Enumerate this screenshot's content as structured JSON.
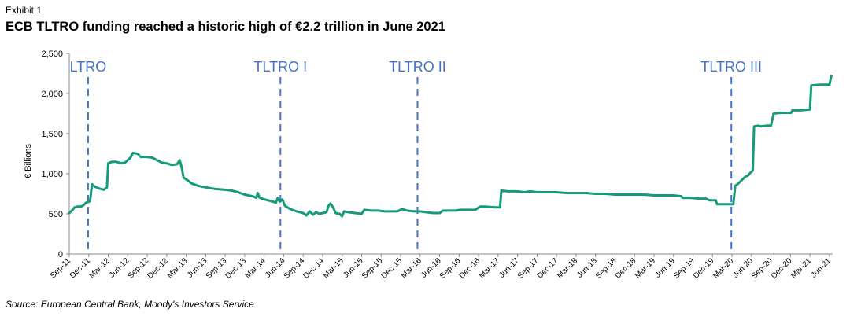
{
  "exhibit_label": "Exhibit 1",
  "title": "ECB TLTRO funding reached a historic high of €2.2 trillion in June 2021",
  "source": "Source: European Central Bank, Moody's Investors Service",
  "colors": {
    "line": "#159A7A",
    "marker": "#4472C4",
    "axis": "#888888",
    "text": "#000000"
  },
  "chart_data": {
    "type": "line",
    "title": "ECB TLTRO funding reached a historic high of €2.2 trillion in June 2021",
    "xlabel": "",
    "ylabel": "€ Billions",
    "ylim": [
      0,
      2500
    ],
    "yticks": [
      0,
      500,
      1000,
      1500,
      2000,
      2500
    ],
    "ytick_labels": [
      "0",
      "500",
      "1,000",
      "1,500",
      "2,000",
      "2,500"
    ],
    "x_range_months": [
      0,
      117.5
    ],
    "x_ticks": [
      {
        "m": 0,
        "label": "Sep-11"
      },
      {
        "m": 3,
        "label": "Dec-11"
      },
      {
        "m": 6,
        "label": "Mar-12"
      },
      {
        "m": 9,
        "label": "Jun-12"
      },
      {
        "m": 12,
        "label": "Sep-12"
      },
      {
        "m": 15,
        "label": "Dec-12"
      },
      {
        "m": 18,
        "label": "Mar-13"
      },
      {
        "m": 21,
        "label": "Jun-13"
      },
      {
        "m": 24,
        "label": "Sep-13"
      },
      {
        "m": 27,
        "label": "Dec-13"
      },
      {
        "m": 30,
        "label": "Mar-14"
      },
      {
        "m": 33,
        "label": "Jun-14"
      },
      {
        "m": 36,
        "label": "Sep-14"
      },
      {
        "m": 39,
        "label": "Dec-14"
      },
      {
        "m": 42,
        "label": "Mar-15"
      },
      {
        "m": 45,
        "label": "Jun-15"
      },
      {
        "m": 48,
        "label": "Sep-15"
      },
      {
        "m": 51,
        "label": "Dec-15"
      },
      {
        "m": 54,
        "label": "Mar-16"
      },
      {
        "m": 57,
        "label": "Jun-16"
      },
      {
        "m": 60,
        "label": "Sep-16"
      },
      {
        "m": 63,
        "label": "Dec-16"
      },
      {
        "m": 66,
        "label": "Mar-17"
      },
      {
        "m": 69,
        "label": "Jun-17"
      },
      {
        "m": 72,
        "label": "Sep-17"
      },
      {
        "m": 75,
        "label": "Dec-17"
      },
      {
        "m": 78,
        "label": "Mar-18"
      },
      {
        "m": 81,
        "label": "Jun-18"
      },
      {
        "m": 84,
        "label": "Sep-18"
      },
      {
        "m": 87,
        "label": "Dec-18"
      },
      {
        "m": 90,
        "label": "Mar-19"
      },
      {
        "m": 93,
        "label": "Jun-19"
      },
      {
        "m": 96,
        "label": "Sep-19"
      },
      {
        "m": 99,
        "label": "Dec-19"
      },
      {
        "m": 102,
        "label": "Mar-20"
      },
      {
        "m": 105,
        "label": "Jun-20"
      },
      {
        "m": 108,
        "label": "Sep-20"
      },
      {
        "m": 111,
        "label": "Dec-20"
      },
      {
        "m": 114,
        "label": "Mar-21"
      },
      {
        "m": 117,
        "label": "Jun-21"
      }
    ],
    "annotations": [
      {
        "label": "LTRO",
        "m": 2.9
      },
      {
        "label": "TLTRO I",
        "m": 32.5
      },
      {
        "label": "TLTRO II",
        "m": 53.6
      },
      {
        "label": "TLTRO III",
        "m": 101.9
      }
    ],
    "series": [
      {
        "name": "ECB TLTRO funding",
        "points": [
          [
            0,
            510
          ],
          [
            0.4,
            540
          ],
          [
            0.8,
            580
          ],
          [
            1.2,
            590
          ],
          [
            1.8,
            590
          ],
          [
            2.2,
            610
          ],
          [
            2.6,
            640
          ],
          [
            3.0,
            650
          ],
          [
            3.2,
            660
          ],
          [
            3.5,
            870
          ],
          [
            3.9,
            840
          ],
          [
            4.5,
            820
          ],
          [
            5.3,
            800
          ],
          [
            5.8,
            830
          ],
          [
            6.0,
            1130
          ],
          [
            6.6,
            1150
          ],
          [
            7.2,
            1150
          ],
          [
            8.0,
            1130
          ],
          [
            8.6,
            1140
          ],
          [
            9.4,
            1200
          ],
          [
            9.8,
            1260
          ],
          [
            10.5,
            1250
          ],
          [
            11.0,
            1210
          ],
          [
            12.0,
            1210
          ],
          [
            12.8,
            1200
          ],
          [
            13.5,
            1170
          ],
          [
            14.2,
            1140
          ],
          [
            15.0,
            1130
          ],
          [
            15.8,
            1110
          ],
          [
            16.6,
            1120
          ],
          [
            17.0,
            1170
          ],
          [
            17.3,
            1080
          ],
          [
            17.6,
            950
          ],
          [
            18.2,
            920
          ],
          [
            18.8,
            880
          ],
          [
            19.8,
            850
          ],
          [
            21.0,
            830
          ],
          [
            22.5,
            810
          ],
          [
            24.0,
            800
          ],
          [
            25.0,
            790
          ],
          [
            26.0,
            770
          ],
          [
            27.0,
            740
          ],
          [
            28.2,
            720
          ],
          [
            28.8,
            700
          ],
          [
            29.0,
            760
          ],
          [
            29.3,
            700
          ],
          [
            30.0,
            680
          ],
          [
            31.0,
            660
          ],
          [
            31.8,
            640
          ],
          [
            32.1,
            700
          ],
          [
            32.4,
            650
          ],
          [
            32.8,
            680
          ],
          [
            33.2,
            600
          ],
          [
            34.0,
            560
          ],
          [
            35.0,
            530
          ],
          [
            36.0,
            510
          ],
          [
            36.5,
            480
          ],
          [
            37.0,
            530
          ],
          [
            37.5,
            490
          ],
          [
            38.0,
            520
          ],
          [
            38.5,
            500
          ],
          [
            39.0,
            510
          ],
          [
            39.6,
            520
          ],
          [
            39.9,
            600
          ],
          [
            40.2,
            630
          ],
          [
            40.6,
            580
          ],
          [
            41.0,
            510
          ],
          [
            41.6,
            500
          ],
          [
            42.0,
            470
          ],
          [
            42.3,
            530
          ],
          [
            43.0,
            520
          ],
          [
            44.0,
            510
          ],
          [
            45.0,
            500
          ],
          [
            45.4,
            550
          ],
          [
            46.5,
            540
          ],
          [
            47.5,
            540
          ],
          [
            48.5,
            530
          ],
          [
            49.5,
            530
          ],
          [
            50.5,
            530
          ],
          [
            51.2,
            560
          ],
          [
            52.0,
            540
          ],
          [
            53.0,
            530
          ],
          [
            54.0,
            530
          ],
          [
            55.0,
            520
          ],
          [
            56.0,
            510
          ],
          [
            57.0,
            510
          ],
          [
            57.5,
            540
          ],
          [
            58.5,
            540
          ],
          [
            59.5,
            540
          ],
          [
            60.2,
            550
          ],
          [
            61.0,
            550
          ],
          [
            62.5,
            550
          ],
          [
            63.2,
            590
          ],
          [
            64.0,
            590
          ],
          [
            65.5,
            580
          ],
          [
            66.3,
            580
          ],
          [
            66.5,
            790
          ],
          [
            67.5,
            780
          ],
          [
            69.0,
            780
          ],
          [
            70.0,
            770
          ],
          [
            71.0,
            780
          ],
          [
            72.0,
            770
          ],
          [
            73.5,
            770
          ],
          [
            75.0,
            770
          ],
          [
            76.5,
            760
          ],
          [
            78.0,
            760
          ],
          [
            79.5,
            760
          ],
          [
            81.0,
            750
          ],
          [
            82.5,
            750
          ],
          [
            84.0,
            740
          ],
          [
            85.5,
            740
          ],
          [
            87.0,
            740
          ],
          [
            88.5,
            740
          ],
          [
            90.0,
            730
          ],
          [
            91.5,
            730
          ],
          [
            93.0,
            730
          ],
          [
            94.2,
            720
          ],
          [
            94.4,
            700
          ],
          [
            95.5,
            700
          ],
          [
            97.0,
            690
          ],
          [
            98.0,
            690
          ],
          [
            98.5,
            670
          ],
          [
            99.5,
            670
          ],
          [
            99.7,
            620
          ],
          [
            101.0,
            620
          ],
          [
            102.2,
            620
          ],
          [
            102.5,
            850
          ],
          [
            103.0,
            880
          ],
          [
            103.5,
            920
          ],
          [
            104.0,
            960
          ],
          [
            104.5,
            980
          ],
          [
            104.8,
            1010
          ],
          [
            105.2,
            1040
          ],
          [
            105.4,
            1590
          ],
          [
            106.0,
            1600
          ],
          [
            106.5,
            1590
          ],
          [
            107.5,
            1600
          ],
          [
            108.0,
            1600
          ],
          [
            108.4,
            1750
          ],
          [
            109.5,
            1760
          ],
          [
            110.5,
            1760
          ],
          [
            111.1,
            1760
          ],
          [
            111.3,
            1790
          ],
          [
            112.5,
            1790
          ],
          [
            114.0,
            1800
          ],
          [
            114.2,
            2100
          ],
          [
            115.5,
            2110
          ],
          [
            117.0,
            2110
          ],
          [
            117.3,
            2220
          ]
        ]
      }
    ]
  }
}
